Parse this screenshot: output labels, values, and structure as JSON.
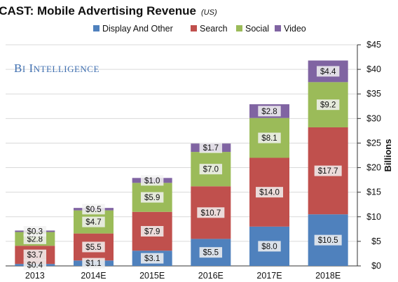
{
  "branding": {
    "logo_text": "BI Intelligence"
  },
  "colors": {
    "display": "#4f81bd",
    "search": "#c0504d",
    "social": "#9bbb59",
    "video": "#8064a2",
    "grid": "#d9d9d9",
    "label_box": "#f2f2f2"
  },
  "chart_data": {
    "type": "bar",
    "stacked": true,
    "title": "FORECAST: Mobile Advertising Revenue",
    "title_unit": "(US)",
    "xlabel": "",
    "ylabel": "Billions",
    "ylim": [
      0,
      45
    ],
    "yticks": [
      0,
      5,
      10,
      15,
      20,
      25,
      30,
      35,
      40,
      45
    ],
    "ytick_labels": [
      "$0",
      "$5",
      "$10",
      "$15",
      "$20",
      "$25",
      "$30",
      "$35",
      "$40",
      "$45"
    ],
    "y_axis_side": "right",
    "grid": true,
    "legend_position": "top",
    "categories": [
      "2013",
      "2014E",
      "2015E",
      "2016E",
      "2017E",
      "2018E"
    ],
    "series": [
      {
        "name": "Display And Other",
        "key": "display",
        "values": [
          0.4,
          1.1,
          3.1,
          5.5,
          8.0,
          10.5
        ],
        "labels": [
          "$0.4",
          "$1.1",
          "$3.1",
          "$5.5",
          "$8.0",
          "$10.5"
        ]
      },
      {
        "name": "Search",
        "key": "search",
        "values": [
          3.7,
          5.5,
          7.9,
          10.7,
          14.0,
          17.7
        ],
        "labels": [
          "$3.7",
          "$5.5",
          "$7.9",
          "$10.7",
          "$14.0",
          "$17.7"
        ]
      },
      {
        "name": "Social",
        "key": "social",
        "values": [
          2.8,
          4.7,
          5.9,
          7.0,
          8.1,
          9.2
        ],
        "labels": [
          "$2.8",
          "$4.7",
          "$5.9",
          "$7.0",
          "$8.1",
          "$9.2"
        ]
      },
      {
        "name": "Video",
        "key": "video",
        "values": [
          0.3,
          0.5,
          1.0,
          1.7,
          2.8,
          4.4
        ],
        "labels": [
          "$0.3",
          "$0.5",
          "$1.0",
          "$1.7",
          "$2.8",
          "$4.4"
        ]
      }
    ]
  }
}
